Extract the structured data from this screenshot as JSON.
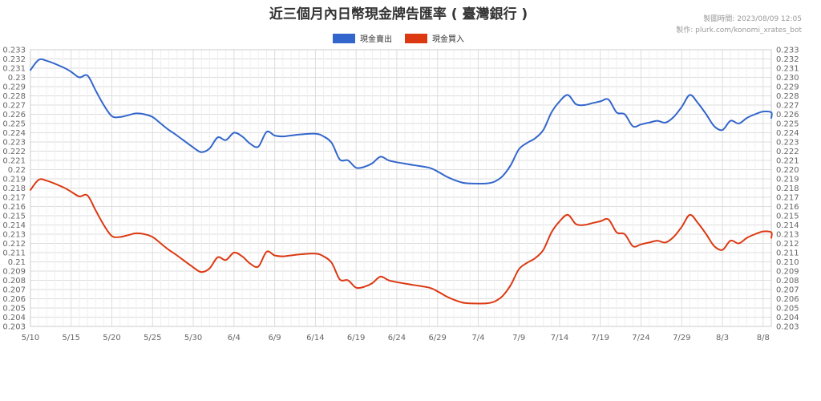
{
  "chart_data": {
    "type": "line",
    "title": "近三個月內日幣現金牌告匯率 ( 臺灣銀行 )",
    "meta_lines": [
      "製圖時間: 2023/08/09 12:05",
      "製作: plurk.com/konomi_xrates_bot"
    ],
    "x_ticks": [
      "5/10",
      "5/15",
      "5/20",
      "5/25",
      "5/30",
      "6/4",
      "6/9",
      "6/14",
      "6/19",
      "6/24",
      "6/29",
      "7/4",
      "7/9",
      "7/14",
      "7/19",
      "7/24",
      "7/29",
      "8/3",
      "8/8"
    ],
    "y_ticks_left": [
      "0.233",
      "0.232",
      "0.231",
      "0.23",
      "0.229",
      "0.228",
      "0.227",
      "0.226",
      "0.225",
      "0.224",
      "0.223",
      "0.222",
      "0.221",
      "0.22",
      "0.219",
      "0.218",
      "0.217",
      "0.216",
      "0.215",
      "0.214",
      "0.213",
      "0.212",
      "0.211",
      "0.21",
      "0.209",
      "0.208",
      "0.207",
      "0.206",
      "0.205",
      "0.204",
      "0.203"
    ],
    "y_ticks_right": [
      "0.233",
      "0.232",
      "0.231",
      "0.230",
      "0.229",
      "0.228",
      "0.227",
      "0.226",
      "0.225",
      "0.224",
      "0.223",
      "0.222",
      "0.221",
      "0.220",
      "0.219",
      "0.218",
      "0.217",
      "0.216",
      "0.215",
      "0.214",
      "0.213",
      "0.212",
      "0.211",
      "0.210",
      "0.209",
      "0.208",
      "0.207",
      "0.206",
      "0.205",
      "0.204",
      "0.203"
    ],
    "ylim": [
      0.203,
      0.233
    ],
    "x_range_days": [
      0,
      91
    ],
    "grid": true,
    "legend_position": "top-center",
    "series": [
      {
        "name": "現金賣出",
        "color": "#3366cc",
        "points": [
          [
            0,
            0.2308
          ],
          [
            1,
            0.2319
          ],
          [
            2,
            0.2318
          ],
          [
            4,
            0.2311
          ],
          [
            5,
            0.2306
          ],
          [
            6,
            0.23
          ],
          [
            7,
            0.2302
          ],
          [
            8,
            0.2286
          ],
          [
            9,
            0.227
          ],
          [
            10,
            0.2258
          ],
          [
            11,
            0.2257
          ],
          [
            12,
            0.2259
          ],
          [
            13,
            0.2261
          ],
          [
            14,
            0.226
          ],
          [
            15,
            0.2257
          ],
          [
            16,
            0.225
          ],
          [
            17,
            0.2243
          ],
          [
            18,
            0.2237
          ],
          [
            20,
            0.2224
          ],
          [
            21,
            0.2219
          ],
          [
            22,
            0.2223
          ],
          [
            23,
            0.2235
          ],
          [
            24,
            0.2232
          ],
          [
            25,
            0.224
          ],
          [
            26,
            0.2236
          ],
          [
            27,
            0.2228
          ],
          [
            28,
            0.2225
          ],
          [
            29,
            0.2241
          ],
          [
            30,
            0.2237
          ],
          [
            31,
            0.2236
          ],
          [
            32,
            0.2237
          ],
          [
            33,
            0.2238
          ],
          [
            35,
            0.2239
          ],
          [
            36,
            0.2236
          ],
          [
            37,
            0.2229
          ],
          [
            38,
            0.2211
          ],
          [
            39,
            0.221
          ],
          [
            40,
            0.2202
          ],
          [
            41,
            0.2203
          ],
          [
            42,
            0.2207
          ],
          [
            43,
            0.2214
          ],
          [
            44,
            0.221
          ],
          [
            45,
            0.2208
          ],
          [
            47,
            0.2205
          ],
          [
            49,
            0.2202
          ],
          [
            50,
            0.2198
          ],
          [
            51,
            0.2193
          ],
          [
            52,
            0.2189
          ],
          [
            53,
            0.2186
          ],
          [
            54,
            0.2185
          ],
          [
            56,
            0.2185
          ],
          [
            57,
            0.2187
          ],
          [
            58,
            0.2193
          ],
          [
            59,
            0.2205
          ],
          [
            60,
            0.2222
          ],
          [
            61,
            0.2229
          ],
          [
            62,
            0.2234
          ],
          [
            63,
            0.2243
          ],
          [
            64,
            0.2262
          ],
          [
            65,
            0.2274
          ],
          [
            66,
            0.2281
          ],
          [
            67,
            0.2271
          ],
          [
            68,
            0.227
          ],
          [
            69,
            0.2272
          ],
          [
            70,
            0.2274
          ],
          [
            71,
            0.2276
          ],
          [
            72,
            0.2262
          ],
          [
            73,
            0.226
          ],
          [
            74,
            0.2247
          ],
          [
            75,
            0.2249
          ],
          [
            76,
            0.2251
          ],
          [
            77,
            0.2253
          ],
          [
            78,
            0.2251
          ],
          [
            79,
            0.2257
          ],
          [
            80,
            0.2268
          ],
          [
            81,
            0.2281
          ],
          [
            82,
            0.2272
          ],
          [
            83,
            0.226
          ],
          [
            84,
            0.2247
          ],
          [
            85,
            0.2243
          ],
          [
            86,
            0.2253
          ],
          [
            87,
            0.225
          ],
          [
            88,
            0.2256
          ],
          [
            89,
            0.226
          ],
          [
            90,
            0.2263
          ],
          [
            91,
            0.2262
          ],
          [
            92,
            0.2256
          ],
          [
            93,
            0.2255
          ]
        ]
      },
      {
        "name": "現金買入",
        "color": "#dc3912",
        "points": [
          [
            0,
            0.2178
          ],
          [
            1,
            0.2189
          ],
          [
            2,
            0.2188
          ],
          [
            4,
            0.2181
          ],
          [
            5,
            0.2176
          ],
          [
            6,
            0.2171
          ],
          [
            7,
            0.2172
          ],
          [
            8,
            0.2156
          ],
          [
            9,
            0.214
          ],
          [
            10,
            0.2128
          ],
          [
            11,
            0.2127
          ],
          [
            12,
            0.2129
          ],
          [
            13,
            0.2131
          ],
          [
            14,
            0.213
          ],
          [
            15,
            0.2127
          ],
          [
            16,
            0.212
          ],
          [
            17,
            0.2113
          ],
          [
            18,
            0.2107
          ],
          [
            20,
            0.2094
          ],
          [
            21,
            0.2089
          ],
          [
            22,
            0.2093
          ],
          [
            23,
            0.2105
          ],
          [
            24,
            0.2102
          ],
          [
            25,
            0.211
          ],
          [
            26,
            0.2106
          ],
          [
            27,
            0.2098
          ],
          [
            28,
            0.2095
          ],
          [
            29,
            0.2111
          ],
          [
            30,
            0.2107
          ],
          [
            31,
            0.2106
          ],
          [
            32,
            0.2107
          ],
          [
            33,
            0.2108
          ],
          [
            35,
            0.2109
          ],
          [
            36,
            0.2106
          ],
          [
            37,
            0.2099
          ],
          [
            38,
            0.2081
          ],
          [
            39,
            0.208
          ],
          [
            40,
            0.2072
          ],
          [
            41,
            0.2073
          ],
          [
            42,
            0.2077
          ],
          [
            43,
            0.2084
          ],
          [
            44,
            0.208
          ],
          [
            45,
            0.2078
          ],
          [
            47,
            0.2075
          ],
          [
            49,
            0.2072
          ],
          [
            50,
            0.2068
          ],
          [
            51,
            0.2063
          ],
          [
            52,
            0.2059
          ],
          [
            53,
            0.2056
          ],
          [
            54,
            0.2055
          ],
          [
            56,
            0.2055
          ],
          [
            57,
            0.2057
          ],
          [
            58,
            0.2063
          ],
          [
            59,
            0.2075
          ],
          [
            60,
            0.2092
          ],
          [
            61,
            0.2099
          ],
          [
            62,
            0.2104
          ],
          [
            63,
            0.2113
          ],
          [
            64,
            0.2132
          ],
          [
            65,
            0.2144
          ],
          [
            66,
            0.2151
          ],
          [
            67,
            0.2141
          ],
          [
            68,
            0.214
          ],
          [
            69,
            0.2142
          ],
          [
            70,
            0.2144
          ],
          [
            71,
            0.2146
          ],
          [
            72,
            0.2132
          ],
          [
            73,
            0.213
          ],
          [
            74,
            0.2117
          ],
          [
            75,
            0.2119
          ],
          [
            76,
            0.2121
          ],
          [
            77,
            0.2123
          ],
          [
            78,
            0.2121
          ],
          [
            79,
            0.2127
          ],
          [
            80,
            0.2138
          ],
          [
            81,
            0.2151
          ],
          [
            82,
            0.2142
          ],
          [
            83,
            0.213
          ],
          [
            84,
            0.2117
          ],
          [
            85,
            0.2113
          ],
          [
            86,
            0.2123
          ],
          [
            87,
            0.212
          ],
          [
            88,
            0.2126
          ],
          [
            89,
            0.213
          ],
          [
            90,
            0.2133
          ],
          [
            91,
            0.2132
          ],
          [
            92,
            0.2126
          ],
          [
            93,
            0.2125
          ]
        ]
      }
    ]
  }
}
